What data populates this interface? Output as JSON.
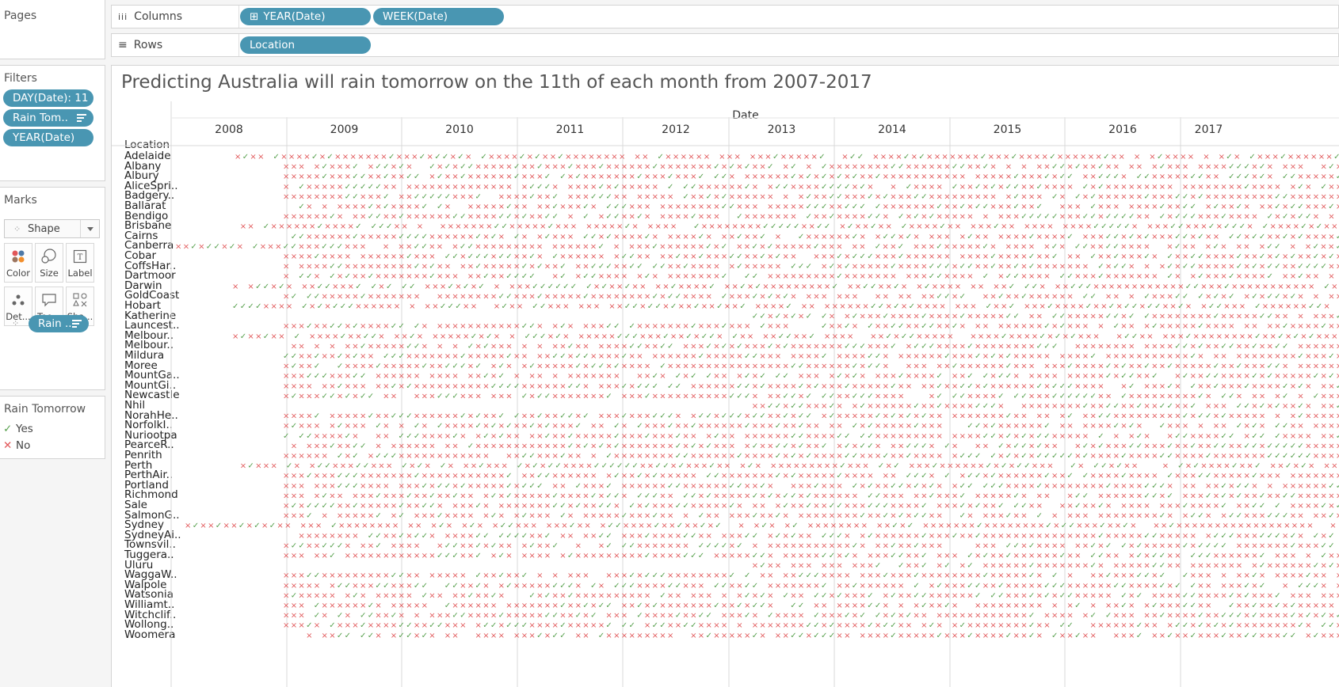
{
  "pages": {
    "title": "Pages"
  },
  "columns_shelf": {
    "label": "Columns",
    "pills": [
      {
        "label": "YEAR(Date)",
        "prefix": "⊞"
      },
      {
        "label": "WEEK(Date)"
      }
    ]
  },
  "rows_shelf": {
    "label": "Rows",
    "pills": [
      {
        "label": "Location"
      }
    ]
  },
  "filters": {
    "title": "Filters",
    "pills": [
      {
        "label": "DAY(Date): 11"
      },
      {
        "label": "Rain Tom.."
      },
      {
        "label": "YEAR(Date)"
      }
    ]
  },
  "marks": {
    "title": "Marks",
    "mark_type": "Shape",
    "cards": [
      {
        "label": "Color",
        "icon": "color-icon"
      },
      {
        "label": "Size",
        "icon": "size-icon"
      },
      {
        "label": "Label",
        "icon": "label-icon"
      },
      {
        "label": "Det...",
        "icon": "detail-icon"
      },
      {
        "label": "Too...",
        "icon": "tooltip-icon"
      },
      {
        "label": "Sha...",
        "icon": "shape-icon"
      }
    ],
    "shape_pill": "Rain .."
  },
  "legend": {
    "title": "Rain Tomorrow",
    "items": [
      {
        "label": "Yes",
        "symbol": "✓",
        "color": "#59a14f"
      },
      {
        "label": "No",
        "symbol": "✕",
        "color": "#e15759"
      }
    ]
  },
  "view": {
    "title": "Predicting Australia will rain tomorrow on the 11th of each month from 2007-2017",
    "column_header": "Date",
    "row_header": "Location",
    "years": [
      "2008",
      "2009",
      "2010",
      "2011",
      "2012",
      "2013",
      "2014",
      "2015",
      "2016",
      "2017"
    ],
    "locations": [
      "Adelaide",
      "Albany",
      "Albury",
      "AliceSpri..",
      "Badgery..",
      "Ballarat",
      "Bendigo",
      "Brisbane",
      "Cairns",
      "Canberra",
      "Cobar",
      "CoffsHar..",
      "Dartmoor",
      "Darwin",
      "GoldCoast",
      "Hobart",
      "Katherine",
      "Launcest..",
      "Melbour..",
      "Melbour..",
      "Mildura",
      "Moree",
      "MountGa..",
      "MountGi..",
      "Newcastle",
      "Nhil",
      "NorahHe..",
      "NorfolkI..",
      "Nuriootpa",
      "PearceR..",
      "Penrith",
      "Perth",
      "PerthAir..",
      "Portland",
      "Richmond",
      "Sale",
      "SalmonG..",
      "Sydney",
      "SydneyAi..",
      "Townsvil..",
      "Tuggera..",
      "Uluru",
      "WaggaW..",
      "Walpole",
      "Watsonia",
      "Williamt..",
      "Witchclif..",
      "Wollong..",
      "Woomera"
    ]
  },
  "colors": {
    "yes": "#59a14f",
    "no": "#e15759",
    "pill": "#4996b2"
  }
}
